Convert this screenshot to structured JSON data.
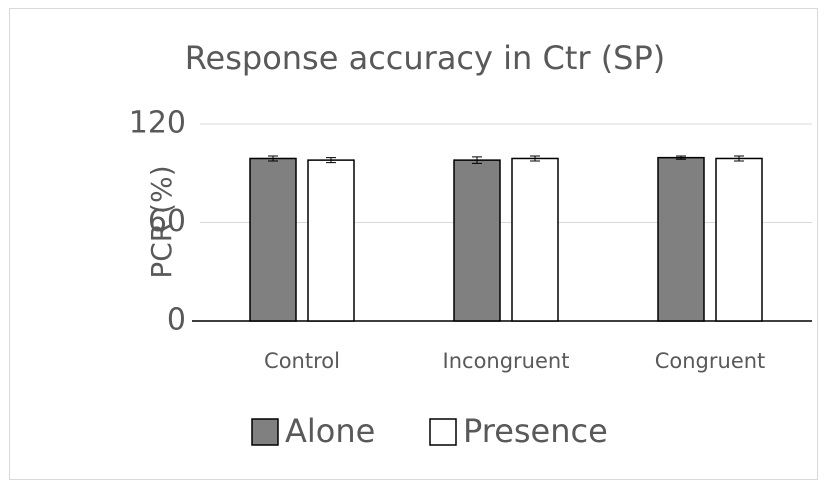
{
  "chart_data": {
    "type": "bar",
    "title": "Response accuracy in Ctr (SP)",
    "y_label": "PCR (%)",
    "categories": [
      "Control",
      "Incongruent",
      "Congruent"
    ],
    "series": [
      {
        "name": "Alone",
        "color": "#808080",
        "values": [
          99,
          98,
          99.5
        ],
        "errors": [
          1.5,
          2,
          1
        ]
      },
      {
        "name": "Presence",
        "color": "#ffffff",
        "values": [
          98,
          99,
          99
        ],
        "errors": [
          1.5,
          1.5,
          1.5
        ]
      }
    ],
    "ylim": [
      0,
      120
    ],
    "yticks": [
      0,
      60,
      120
    ],
    "grid": true,
    "legend": "bottom"
  }
}
